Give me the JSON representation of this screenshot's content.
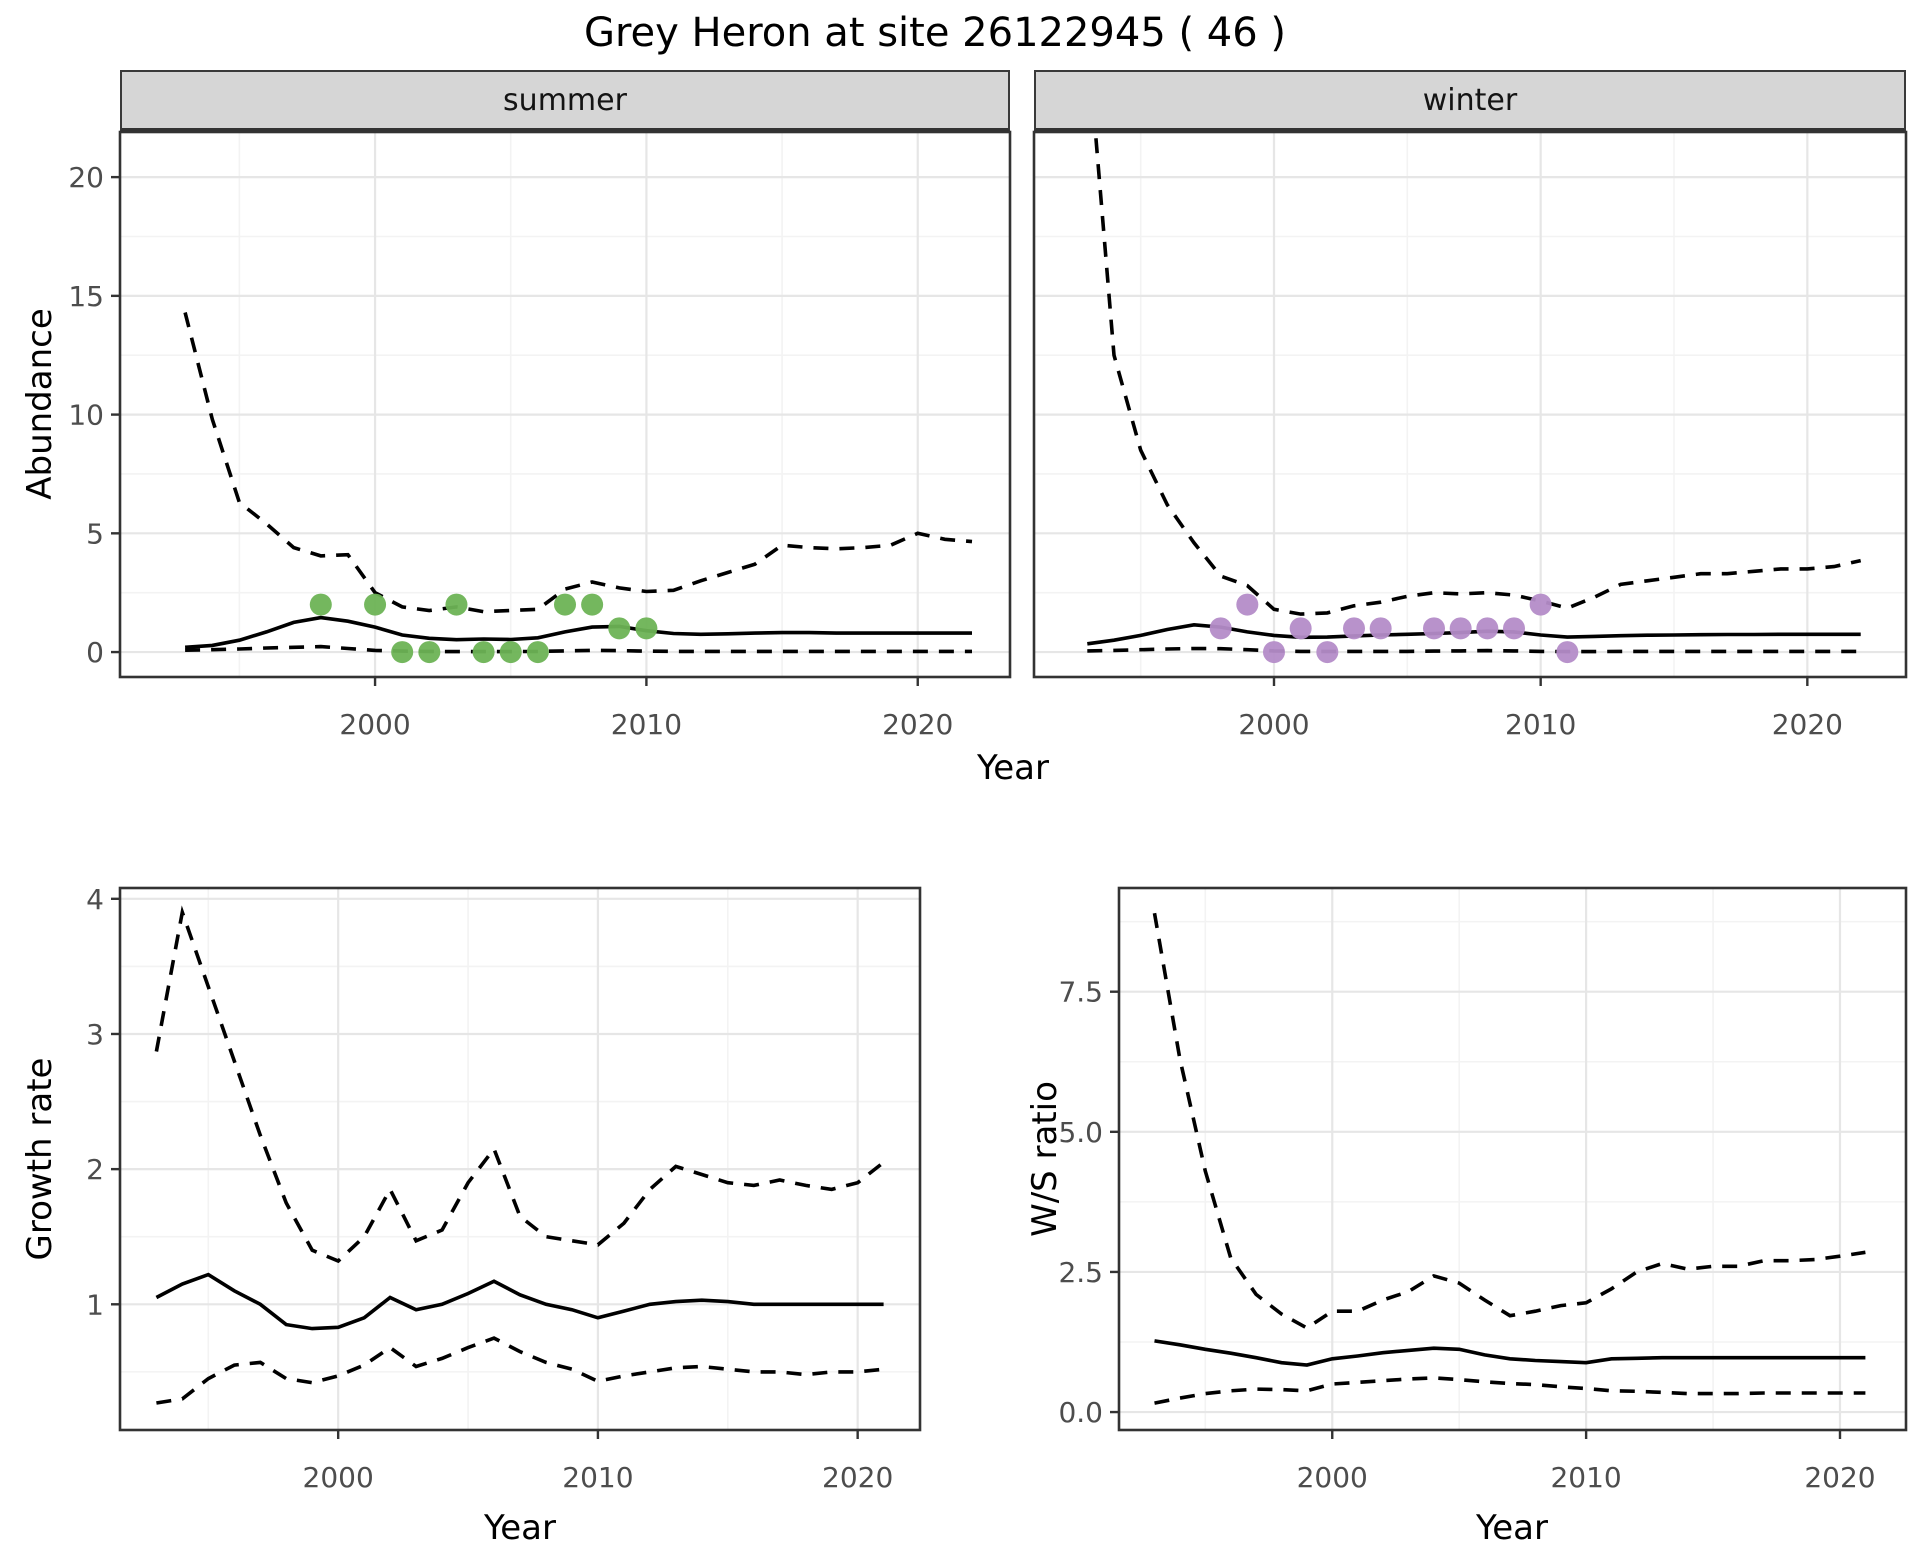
{
  "title": "Grey Heron at site 26122945 ( 46 )",
  "facets": [
    {
      "label": "summer"
    },
    {
      "label": "winter"
    }
  ],
  "axis_titles": {
    "abundance": "Abundance",
    "growth": "Growth rate",
    "ws": "W/S ratio",
    "year": "Year"
  },
  "colors": {
    "point_summer": "#6db355",
    "point_winter": "#b48cc8",
    "line": "#000000",
    "strip_bg": "#d6d6d6",
    "grid_major": "#e6e6e6",
    "grid_minor": "#f3f3f3",
    "axis_text": "#4d4d4d",
    "panel_border": "#333333"
  },
  "chart_data": [
    {
      "id": "summer",
      "type": "line",
      "strip": "summer",
      "xlabel": "Year",
      "ylabel": "Abundance",
      "xlim": [
        1990.6,
        2023.4
      ],
      "ylim": [
        -1.05,
        21.9
      ],
      "xticks": [
        2000,
        2010,
        2020
      ],
      "xtick_labels": [
        "2000",
        "2010",
        "2020"
      ],
      "xminor": [
        1995,
        2005,
        2015
      ],
      "yticks": [
        0,
        5,
        10,
        15,
        20
      ],
      "ytick_labels": [
        "0",
        "5",
        "10",
        "15",
        "20"
      ],
      "yminor": [
        2.5,
        7.5,
        12.5,
        17.5
      ],
      "show_y_labels": true,
      "years": [
        1993,
        1994,
        1995,
        1996,
        1997,
        1998,
        1999,
        2000,
        2001,
        2002,
        2003,
        2004,
        2005,
        2006,
        2007,
        2008,
        2009,
        2010,
        2011,
        2012,
        2013,
        2014,
        2015,
        2016,
        2017,
        2018,
        2019,
        2020,
        2021,
        2022
      ],
      "series": [
        {
          "name": "upper-95ci",
          "style": "dashed",
          "values": [
            14.3,
            9.8,
            6.3,
            5.4,
            4.4,
            4.05,
            4.1,
            2.5,
            1.9,
            1.75,
            1.9,
            1.7,
            1.75,
            1.8,
            2.65,
            2.95,
            2.7,
            2.55,
            2.6,
            3.0,
            3.35,
            3.7,
            4.5,
            4.4,
            4.35,
            4.4,
            4.5,
            5.0,
            4.75,
            4.65
          ]
        },
        {
          "name": "mean",
          "style": "solid",
          "values": [
            0.2,
            0.28,
            0.5,
            0.85,
            1.25,
            1.45,
            1.3,
            1.05,
            0.72,
            0.58,
            0.52,
            0.55,
            0.53,
            0.6,
            0.85,
            1.05,
            1.08,
            0.9,
            0.78,
            0.75,
            0.77,
            0.8,
            0.82,
            0.82,
            0.8,
            0.8,
            0.8,
            0.8,
            0.8,
            0.8
          ]
        },
        {
          "name": "lower-95ci",
          "style": "dashed",
          "values": [
            0.08,
            0.1,
            0.13,
            0.17,
            0.2,
            0.23,
            0.15,
            0.07,
            0.04,
            0.03,
            0.02,
            0.02,
            0.02,
            0.03,
            0.05,
            0.07,
            0.06,
            0.04,
            0.03,
            0.03,
            0.03,
            0.03,
            0.03,
            0.03,
            0.03,
            0.03,
            0.03,
            0.03,
            0.03,
            0.03
          ]
        }
      ],
      "points": {
        "name": "summer-observations",
        "color": "#6db355",
        "data": [
          [
            1998,
            2
          ],
          [
            2000,
            2
          ],
          [
            2001,
            0
          ],
          [
            2002,
            0
          ],
          [
            2003,
            2
          ],
          [
            2004,
            0
          ],
          [
            2005,
            0
          ],
          [
            2006,
            0
          ],
          [
            2007,
            2
          ],
          [
            2008,
            2
          ],
          [
            2009,
            1
          ],
          [
            2010,
            1
          ]
        ]
      }
    },
    {
      "id": "winter",
      "type": "line",
      "strip": "winter",
      "xlabel": "Year",
      "ylabel": "Abundance",
      "xlim": [
        1991.0,
        2023.7
      ],
      "ylim": [
        -1.05,
        21.9
      ],
      "xticks": [
        2000,
        2010,
        2020
      ],
      "xtick_labels": [
        "2000",
        "2010",
        "2020"
      ],
      "xminor": [
        1995,
        2005,
        2015
      ],
      "yticks": [
        0,
        5,
        10,
        15,
        20
      ],
      "ytick_labels": [
        "0",
        "5",
        "10",
        "15",
        "20"
      ],
      "yminor": [
        2.5,
        7.5,
        12.5,
        17.5
      ],
      "show_y_labels": false,
      "years": [
        1993,
        1994,
        1995,
        1996,
        1997,
        1998,
        1999,
        2000,
        2001,
        2002,
        2003,
        2004,
        2005,
        2006,
        2007,
        2008,
        2009,
        2010,
        2011,
        2012,
        2013,
        2014,
        2015,
        2016,
        2017,
        2018,
        2019,
        2020,
        2021,
        2022
      ],
      "series": [
        {
          "name": "upper-95ci",
          "style": "dashed",
          "values": [
            26,
            12.5,
            8.5,
            6.2,
            4.6,
            3.2,
            2.8,
            1.8,
            1.6,
            1.65,
            1.95,
            2.1,
            2.35,
            2.5,
            2.45,
            2.5,
            2.4,
            2.15,
            1.85,
            2.3,
            2.85,
            3.0,
            3.15,
            3.3,
            3.3,
            3.4,
            3.5,
            3.5,
            3.6,
            3.85
          ]
        },
        {
          "name": "mean",
          "style": "solid",
          "values": [
            0.35,
            0.5,
            0.7,
            0.95,
            1.15,
            1.05,
            0.85,
            0.7,
            0.62,
            0.63,
            0.68,
            0.72,
            0.75,
            0.78,
            0.82,
            0.88,
            0.85,
            0.72,
            0.63,
            0.66,
            0.69,
            0.71,
            0.72,
            0.73,
            0.74,
            0.74,
            0.75,
            0.75,
            0.75,
            0.75
          ]
        },
        {
          "name": "lower-95ci",
          "style": "dashed",
          "values": [
            0.05,
            0.07,
            0.1,
            0.13,
            0.15,
            0.14,
            0.1,
            0.05,
            0.03,
            0.03,
            0.03,
            0.03,
            0.03,
            0.04,
            0.05,
            0.06,
            0.05,
            0.03,
            0.02,
            0.02,
            0.03,
            0.03,
            0.03,
            0.03,
            0.03,
            0.03,
            0.03,
            0.03,
            0.03,
            0.03
          ]
        }
      ],
      "points": {
        "name": "winter-observations",
        "color": "#b48cc8",
        "data": [
          [
            1998,
            1
          ],
          [
            1999,
            2
          ],
          [
            2000,
            0
          ],
          [
            2001,
            1
          ],
          [
            2002,
            0
          ],
          [
            2003,
            1
          ],
          [
            2004,
            1
          ],
          [
            2006,
            1
          ],
          [
            2007,
            1
          ],
          [
            2008,
            1
          ],
          [
            2009,
            1
          ],
          [
            2010,
            2
          ],
          [
            2011,
            0
          ]
        ]
      }
    },
    {
      "id": "growth",
      "type": "line",
      "strip": "",
      "xlabel": "Year",
      "ylabel": "Growth rate",
      "xlim": [
        1991.6,
        2022.4
      ],
      "ylim": [
        0.07,
        4.08
      ],
      "xticks": [
        2000,
        2010,
        2020
      ],
      "xtick_labels": [
        "2000",
        "2010",
        "2020"
      ],
      "xminor": [
        1995,
        2005,
        2015
      ],
      "yticks": [
        1,
        2,
        3,
        4
      ],
      "ytick_labels": [
        "1",
        "2",
        "3",
        "4"
      ],
      "yminor": [
        0.5,
        1.5,
        2.5,
        3.5
      ],
      "show_y_labels": true,
      "years": [
        1993,
        1994,
        1995,
        1996,
        1997,
        1998,
        1999,
        2000,
        2001,
        2002,
        2003,
        2004,
        2005,
        2006,
        2007,
        2008,
        2009,
        2010,
        2011,
        2012,
        2013,
        2014,
        2015,
        2016,
        2017,
        2018,
        2019,
        2020,
        2021
      ],
      "series": [
        {
          "name": "upper-95ci",
          "style": "dashed",
          "values": [
            2.87,
            3.9,
            3.35,
            2.8,
            2.25,
            1.75,
            1.4,
            1.32,
            1.5,
            1.85,
            1.47,
            1.55,
            1.9,
            2.15,
            1.65,
            1.5,
            1.47,
            1.44,
            1.6,
            1.85,
            2.02,
            1.96,
            1.9,
            1.88,
            1.92,
            1.88,
            1.85,
            1.9,
            2.05
          ]
        },
        {
          "name": "mean",
          "style": "solid",
          "values": [
            1.05,
            1.15,
            1.22,
            1.1,
            1.0,
            0.85,
            0.82,
            0.83,
            0.9,
            1.05,
            0.96,
            1.0,
            1.08,
            1.17,
            1.07,
            1.0,
            0.96,
            0.9,
            0.95,
            1.0,
            1.02,
            1.03,
            1.02,
            1.0,
            1.0,
            1.0,
            1.0,
            1.0,
            1.0
          ]
        },
        {
          "name": "lower-95ci",
          "style": "dashed",
          "values": [
            0.27,
            0.3,
            0.45,
            0.55,
            0.57,
            0.45,
            0.42,
            0.47,
            0.55,
            0.68,
            0.54,
            0.6,
            0.68,
            0.75,
            0.65,
            0.57,
            0.52,
            0.43,
            0.47,
            0.5,
            0.53,
            0.54,
            0.52,
            0.5,
            0.5,
            0.48,
            0.5,
            0.5,
            0.52
          ]
        }
      ],
      "points": null
    },
    {
      "id": "ws",
      "type": "line",
      "strip": "",
      "xlabel": "Year",
      "ylabel": "W/S ratio",
      "xlim": [
        1991.6,
        2022.6
      ],
      "ylim": [
        -0.32,
        9.35
      ],
      "xticks": [
        2000,
        2010,
        2020
      ],
      "xtick_labels": [
        "2000",
        "2010",
        "2020"
      ],
      "xminor": [
        1995,
        2005,
        2015
      ],
      "yticks": [
        0,
        2.5,
        5.0,
        7.5
      ],
      "ytick_labels": [
        "0.0",
        "2.5",
        "5.0",
        "7.5"
      ],
      "yminor": [
        1.25,
        3.75,
        6.25,
        8.75
      ],
      "show_y_labels": true,
      "years": [
        1993,
        1994,
        1995,
        1996,
        1997,
        1998,
        1999,
        2000,
        2001,
        2002,
        2003,
        2004,
        2005,
        2006,
        2007,
        2008,
        2009,
        2010,
        2011,
        2012,
        2013,
        2014,
        2015,
        2016,
        2017,
        2018,
        2019,
        2020,
        2021
      ],
      "series": [
        {
          "name": "upper-95ci",
          "style": "dashed",
          "values": [
            8.9,
            6.3,
            4.3,
            2.75,
            2.1,
            1.75,
            1.5,
            1.8,
            1.8,
            2.0,
            2.15,
            2.43,
            2.3,
            2.0,
            1.72,
            1.8,
            1.9,
            1.95,
            2.2,
            2.5,
            2.65,
            2.55,
            2.6,
            2.6,
            2.7,
            2.7,
            2.72,
            2.78,
            2.85
          ]
        },
        {
          "name": "mean",
          "style": "solid",
          "values": [
            1.27,
            1.2,
            1.12,
            1.05,
            0.97,
            0.88,
            0.84,
            0.95,
            1.0,
            1.06,
            1.1,
            1.14,
            1.12,
            1.02,
            0.95,
            0.92,
            0.9,
            0.88,
            0.95,
            0.96,
            0.97,
            0.97,
            0.97,
            0.97,
            0.97,
            0.97,
            0.97,
            0.97,
            0.97
          ]
        },
        {
          "name": "lower-95ci",
          "style": "dashed",
          "values": [
            0.16,
            0.25,
            0.33,
            0.38,
            0.41,
            0.4,
            0.38,
            0.5,
            0.53,
            0.56,
            0.59,
            0.61,
            0.58,
            0.54,
            0.51,
            0.49,
            0.45,
            0.42,
            0.38,
            0.37,
            0.35,
            0.33,
            0.33,
            0.33,
            0.34,
            0.34,
            0.34,
            0.34,
            0.34
          ]
        }
      ],
      "points": null
    }
  ]
}
